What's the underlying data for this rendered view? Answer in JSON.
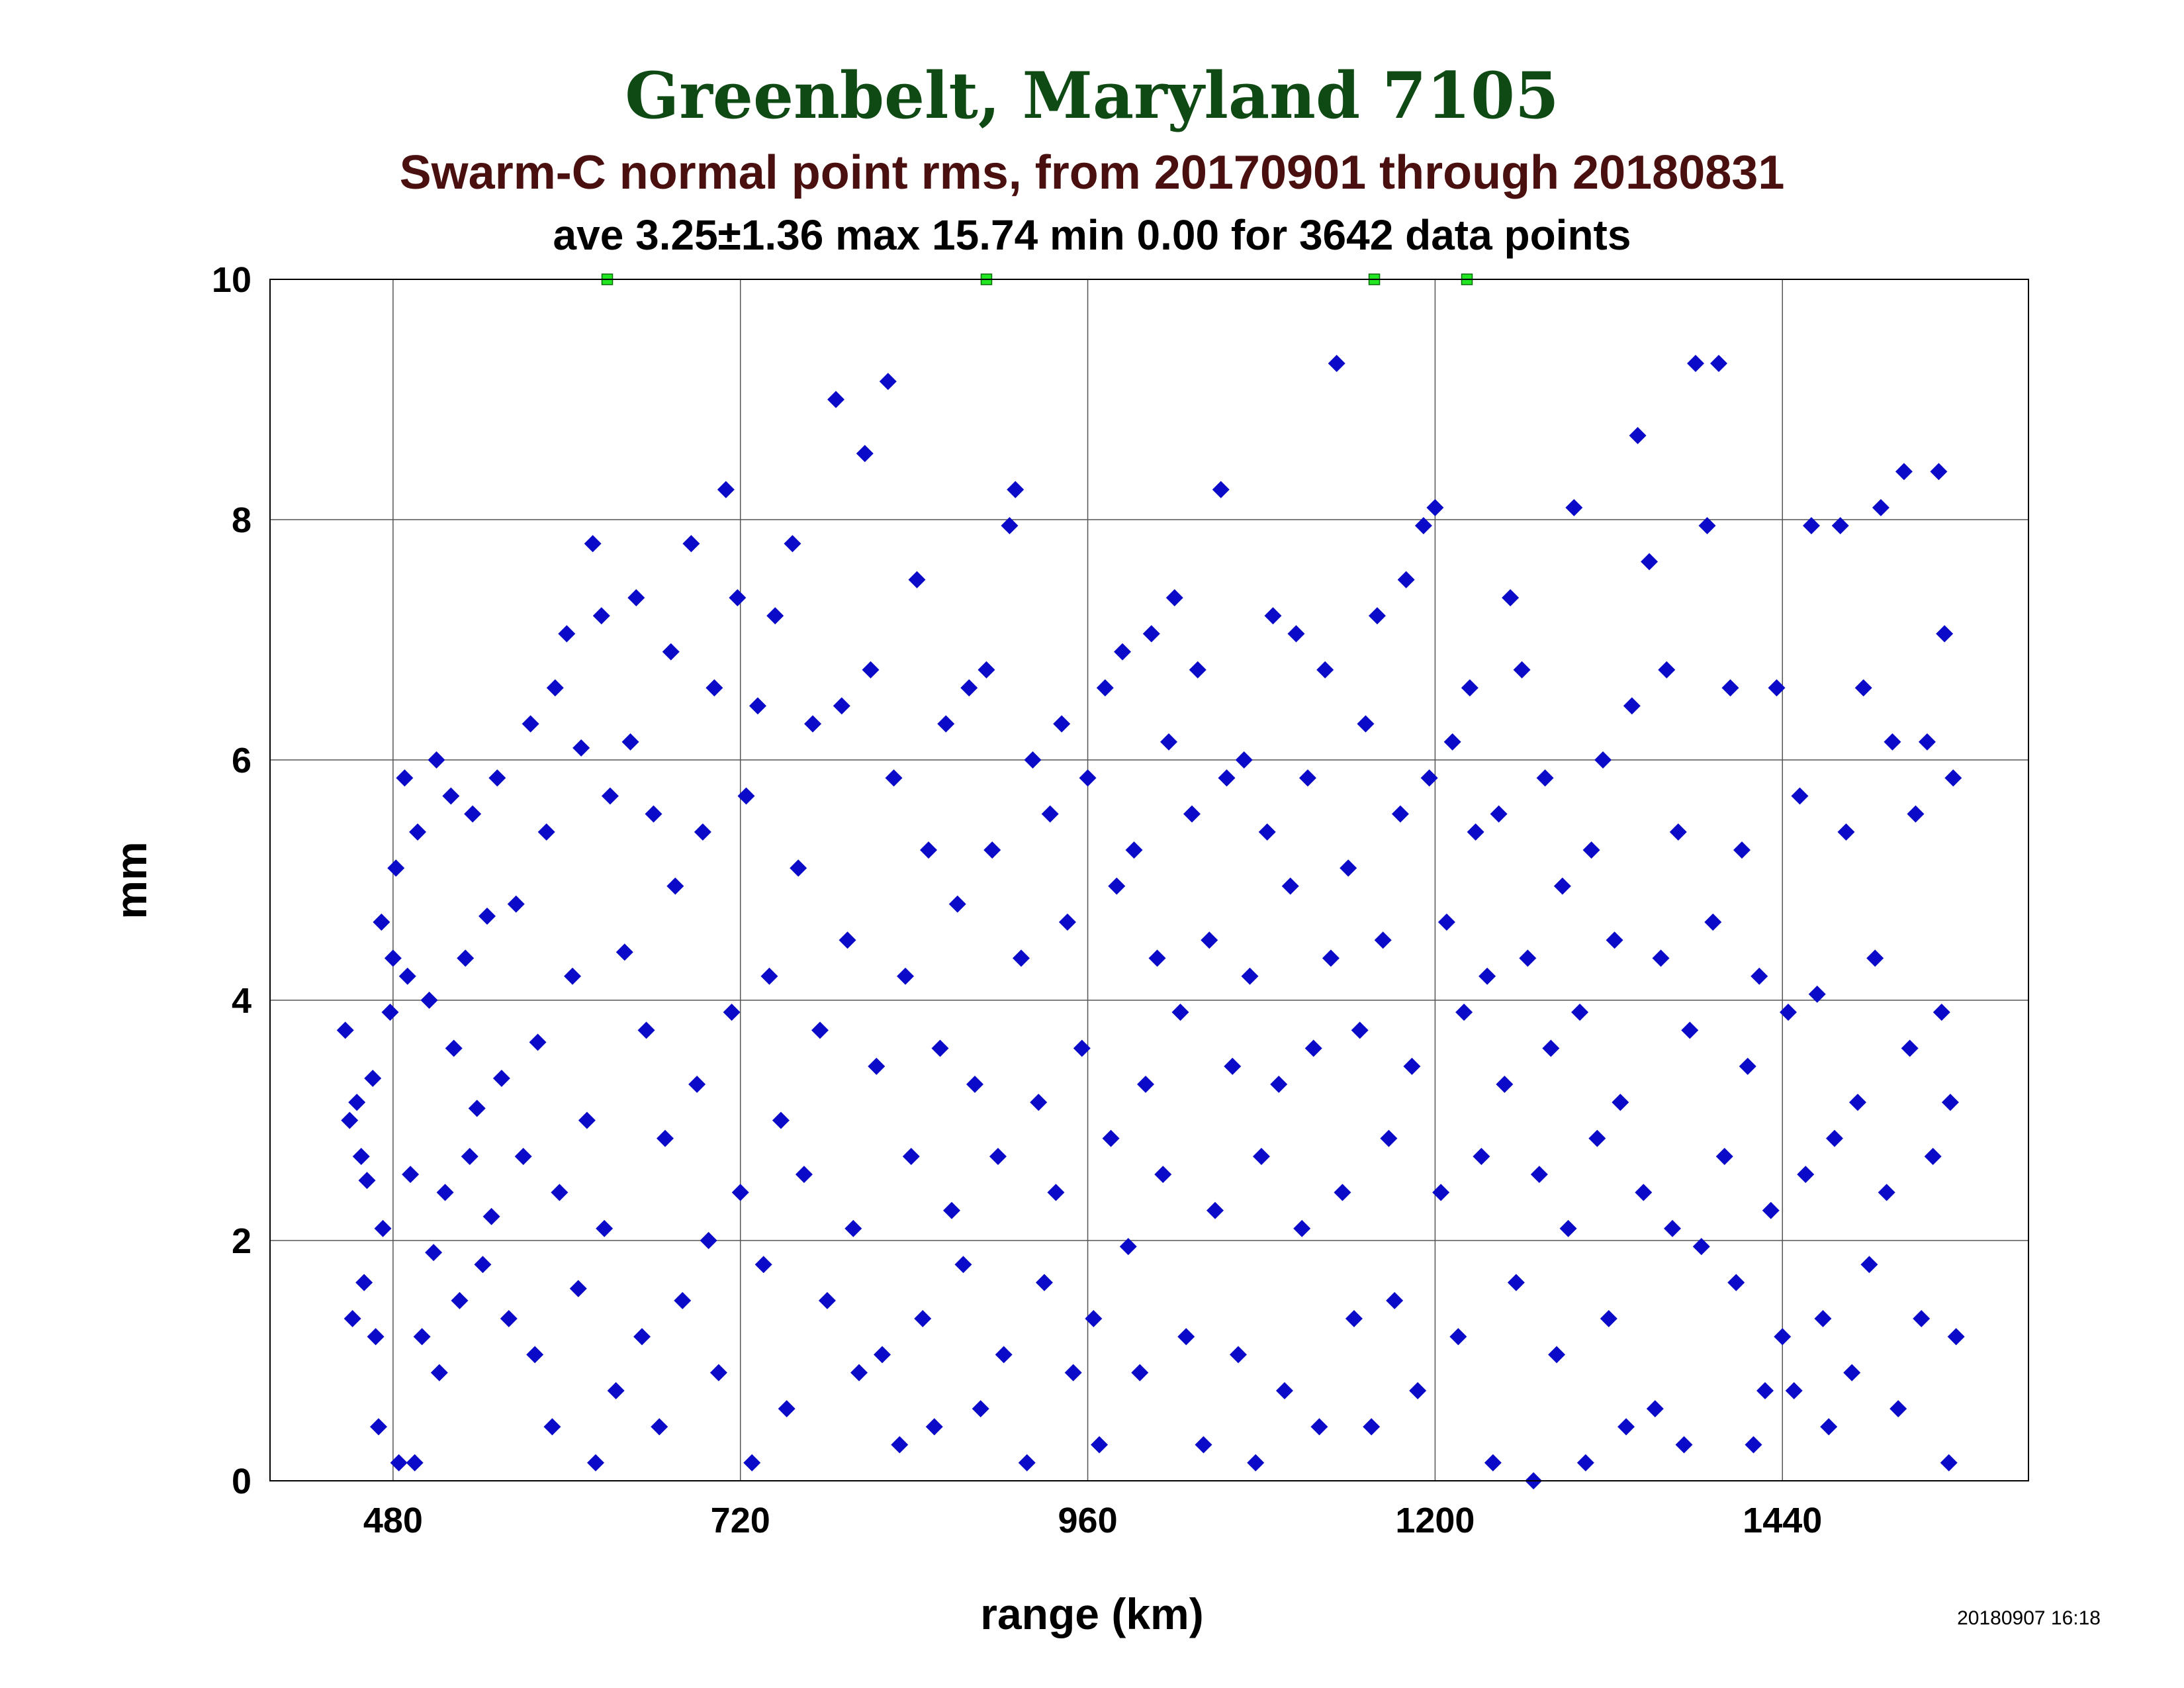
{
  "title": "Greenbelt, Maryland 7105",
  "subtitle": "Swarm-C normal point rms, from 20170901 through 20180831",
  "stats_line": "ave 3.25±1.36 max 15.74 min 0.00 for 3642 data points",
  "timestamp": "20180907 16:18",
  "colors": {
    "title": "#0f4a14",
    "subtitle": "#4a1010",
    "points": "#0a0ac8",
    "outlier_markers": "#22e622",
    "grid": "#555555"
  },
  "chart_data": {
    "type": "scatter",
    "xlabel": "range (km)",
    "ylabel": "mm",
    "xlim": [
      395,
      1610
    ],
    "ylim": [
      0,
      10
    ],
    "x_ticks": [
      480,
      720,
      960,
      1200,
      1440
    ],
    "y_ticks": [
      0,
      2,
      4,
      6,
      8,
      10
    ],
    "grid": true,
    "outliers_above_ylim_at_x": [
      628,
      890,
      1158,
      1222
    ],
    "series": [
      {
        "marker": "diamond",
        "points": [
          [
            447,
            3.75
          ],
          [
            450,
            3.0
          ],
          [
            452,
            1.35
          ],
          [
            455,
            3.15
          ],
          [
            458,
            2.7
          ],
          [
            460,
            1.65
          ],
          [
            462,
            2.5
          ],
          [
            466,
            3.35
          ],
          [
            468,
            1.2
          ],
          [
            470,
            0.45
          ],
          [
            472,
            4.65
          ],
          [
            473,
            2.1
          ],
          [
            478,
            3.9
          ],
          [
            480,
            4.35
          ],
          [
            482,
            5.1
          ],
          [
            484,
            0.15
          ],
          [
            488,
            5.85
          ],
          [
            490,
            4.2
          ],
          [
            492,
            2.55
          ],
          [
            495,
            0.15
          ],
          [
            497,
            5.4
          ],
          [
            500,
            1.2
          ],
          [
            505,
            4.0
          ],
          [
            508,
            1.9
          ],
          [
            510,
            6.0
          ],
          [
            512,
            0.9
          ],
          [
            516,
            2.4
          ],
          [
            520,
            5.7
          ],
          [
            522,
            3.6
          ],
          [
            526,
            1.5
          ],
          [
            530,
            4.35
          ],
          [
            533,
            2.7
          ],
          [
            535,
            5.55
          ],
          [
            538,
            3.1
          ],
          [
            542,
            1.8
          ],
          [
            545,
            4.7
          ],
          [
            548,
            2.2
          ],
          [
            552,
            5.85
          ],
          [
            555,
            3.35
          ],
          [
            560,
            1.35
          ],
          [
            565,
            4.8
          ],
          [
            570,
            2.7
          ],
          [
            575,
            6.3
          ],
          [
            578,
            1.05
          ],
          [
            580,
            3.65
          ],
          [
            586,
            5.4
          ],
          [
            590,
            0.45
          ],
          [
            592,
            6.6
          ],
          [
            595,
            2.4
          ],
          [
            600,
            7.05
          ],
          [
            604,
            4.2
          ],
          [
            608,
            1.6
          ],
          [
            610,
            6.1
          ],
          [
            614,
            3.0
          ],
          [
            618,
            7.8
          ],
          [
            620,
            0.15
          ],
          [
            624,
            7.2
          ],
          [
            626,
            2.1
          ],
          [
            630,
            5.7
          ],
          [
            634,
            0.75
          ],
          [
            640,
            4.4
          ],
          [
            644,
            6.15
          ],
          [
            648,
            7.35
          ],
          [
            652,
            1.2
          ],
          [
            655,
            3.75
          ],
          [
            660,
            5.55
          ],
          [
            664,
            0.45
          ],
          [
            668,
            2.85
          ],
          [
            672,
            6.9
          ],
          [
            675,
            4.95
          ],
          [
            680,
            1.5
          ],
          [
            686,
            7.8
          ],
          [
            690,
            3.3
          ],
          [
            694,
            5.4
          ],
          [
            698,
            2.0
          ],
          [
            702,
            6.6
          ],
          [
            705,
            0.9
          ],
          [
            710,
            8.25
          ],
          [
            714,
            3.9
          ],
          [
            718,
            7.35
          ],
          [
            720,
            2.4
          ],
          [
            724,
            5.7
          ],
          [
            728,
            0.15
          ],
          [
            732,
            6.45
          ],
          [
            736,
            1.8
          ],
          [
            740,
            4.2
          ],
          [
            744,
            7.2
          ],
          [
            748,
            3.0
          ],
          [
            752,
            0.6
          ],
          [
            756,
            7.8
          ],
          [
            760,
            5.1
          ],
          [
            764,
            2.55
          ],
          [
            770,
            6.3
          ],
          [
            775,
            3.75
          ],
          [
            780,
            1.5
          ],
          [
            786,
            9.0
          ],
          [
            790,
            6.45
          ],
          [
            794,
            4.5
          ],
          [
            798,
            2.1
          ],
          [
            802,
            0.9
          ],
          [
            806,
            8.55
          ],
          [
            810,
            6.75
          ],
          [
            814,
            3.45
          ],
          [
            818,
            1.05
          ],
          [
            822,
            9.15
          ],
          [
            826,
            5.85
          ],
          [
            830,
            0.3
          ],
          [
            834,
            4.2
          ],
          [
            838,
            2.7
          ],
          [
            842,
            7.5
          ],
          [
            846,
            1.35
          ],
          [
            850,
            5.25
          ],
          [
            854,
            0.45
          ],
          [
            858,
            3.6
          ],
          [
            862,
            6.3
          ],
          [
            866,
            2.25
          ],
          [
            870,
            4.8
          ],
          [
            874,
            1.8
          ],
          [
            878,
            6.6
          ],
          [
            882,
            3.3
          ],
          [
            886,
            0.6
          ],
          [
            890,
            6.75
          ],
          [
            894,
            5.25
          ],
          [
            898,
            2.7
          ],
          [
            902,
            1.05
          ],
          [
            906,
            7.95
          ],
          [
            910,
            8.25
          ],
          [
            914,
            4.35
          ],
          [
            918,
            0.15
          ],
          [
            922,
            6.0
          ],
          [
            926,
            3.15
          ],
          [
            930,
            1.65
          ],
          [
            934,
            5.55
          ],
          [
            938,
            2.4
          ],
          [
            942,
            6.3
          ],
          [
            946,
            4.65
          ],
          [
            950,
            0.9
          ],
          [
            956,
            3.6
          ],
          [
            960,
            5.85
          ],
          [
            964,
            1.35
          ],
          [
            968,
            0.3
          ],
          [
            972,
            6.6
          ],
          [
            976,
            2.85
          ],
          [
            980,
            4.95
          ],
          [
            984,
            6.9
          ],
          [
            988,
            1.95
          ],
          [
            992,
            5.25
          ],
          [
            996,
            0.9
          ],
          [
            1000,
            3.3
          ],
          [
            1004,
            7.05
          ],
          [
            1008,
            4.35
          ],
          [
            1012,
            2.55
          ],
          [
            1016,
            6.15
          ],
          [
            1020,
            7.35
          ],
          [
            1024,
            3.9
          ],
          [
            1028,
            1.2
          ],
          [
            1032,
            5.55
          ],
          [
            1036,
            6.75
          ],
          [
            1040,
            0.3
          ],
          [
            1044,
            4.5
          ],
          [
            1048,
            2.25
          ],
          [
            1052,
            8.25
          ],
          [
            1056,
            5.85
          ],
          [
            1060,
            3.45
          ],
          [
            1064,
            1.05
          ],
          [
            1068,
            6.0
          ],
          [
            1072,
            4.2
          ],
          [
            1076,
            0.15
          ],
          [
            1080,
            2.7
          ],
          [
            1084,
            5.4
          ],
          [
            1088,
            7.2
          ],
          [
            1092,
            3.3
          ],
          [
            1096,
            0.75
          ],
          [
            1100,
            4.95
          ],
          [
            1104,
            7.05
          ],
          [
            1108,
            2.1
          ],
          [
            1112,
            5.85
          ],
          [
            1116,
            3.6
          ],
          [
            1120,
            0.45
          ],
          [
            1124,
            6.75
          ],
          [
            1128,
            4.35
          ],
          [
            1132,
            9.3
          ],
          [
            1136,
            2.4
          ],
          [
            1140,
            5.1
          ],
          [
            1144,
            1.35
          ],
          [
            1148,
            3.75
          ],
          [
            1152,
            6.3
          ],
          [
            1156,
            0.45
          ],
          [
            1160,
            7.2
          ],
          [
            1164,
            4.5
          ],
          [
            1168,
            2.85
          ],
          [
            1172,
            1.5
          ],
          [
            1176,
            5.55
          ],
          [
            1180,
            7.5
          ],
          [
            1184,
            3.45
          ],
          [
            1188,
            0.75
          ],
          [
            1192,
            7.95
          ],
          [
            1196,
            5.85
          ],
          [
            1200,
            8.1
          ],
          [
            1204,
            2.4
          ],
          [
            1208,
            4.65
          ],
          [
            1212,
            6.15
          ],
          [
            1216,
            1.2
          ],
          [
            1220,
            3.9
          ],
          [
            1224,
            6.6
          ],
          [
            1228,
            5.4
          ],
          [
            1232,
            2.7
          ],
          [
            1236,
            4.2
          ],
          [
            1240,
            0.15
          ],
          [
            1244,
            5.55
          ],
          [
            1248,
            3.3
          ],
          [
            1252,
            7.35
          ],
          [
            1256,
            1.65
          ],
          [
            1260,
            6.75
          ],
          [
            1264,
            4.35
          ],
          [
            1268,
            0.0
          ],
          [
            1272,
            2.55
          ],
          [
            1276,
            5.85
          ],
          [
            1280,
            3.6
          ],
          [
            1284,
            1.05
          ],
          [
            1288,
            4.95
          ],
          [
            1292,
            2.1
          ],
          [
            1296,
            8.1
          ],
          [
            1300,
            3.9
          ],
          [
            1304,
            0.15
          ],
          [
            1308,
            5.25
          ],
          [
            1312,
            2.85
          ],
          [
            1316,
            6.0
          ],
          [
            1320,
            1.35
          ],
          [
            1324,
            4.5
          ],
          [
            1328,
            3.15
          ],
          [
            1332,
            0.45
          ],
          [
            1336,
            6.45
          ],
          [
            1340,
            8.7
          ],
          [
            1344,
            2.4
          ],
          [
            1348,
            7.65
          ],
          [
            1352,
            0.6
          ],
          [
            1356,
            4.35
          ],
          [
            1360,
            6.75
          ],
          [
            1364,
            2.1
          ],
          [
            1368,
            5.4
          ],
          [
            1372,
            0.3
          ],
          [
            1376,
            3.75
          ],
          [
            1380,
            9.3
          ],
          [
            1384,
            1.95
          ],
          [
            1388,
            7.95
          ],
          [
            1392,
            4.65
          ],
          [
            1396,
            9.3
          ],
          [
            1400,
            2.7
          ],
          [
            1404,
            6.6
          ],
          [
            1408,
            1.65
          ],
          [
            1412,
            5.25
          ],
          [
            1416,
            3.45
          ],
          [
            1420,
            0.3
          ],
          [
            1424,
            4.2
          ],
          [
            1428,
            0.75
          ],
          [
            1432,
            2.25
          ],
          [
            1436,
            6.6
          ],
          [
            1440,
            1.2
          ],
          [
            1444,
            3.9
          ],
          [
            1448,
            0.75
          ],
          [
            1452,
            5.7
          ],
          [
            1456,
            2.55
          ],
          [
            1460,
            7.95
          ],
          [
            1464,
            4.05
          ],
          [
            1468,
            1.35
          ],
          [
            1472,
            0.45
          ],
          [
            1476,
            2.85
          ],
          [
            1480,
            7.95
          ],
          [
            1484,
            5.4
          ],
          [
            1488,
            0.9
          ],
          [
            1492,
            3.15
          ],
          [
            1496,
            6.6
          ],
          [
            1500,
            1.8
          ],
          [
            1504,
            4.35
          ],
          [
            1508,
            8.1
          ],
          [
            1512,
            2.4
          ],
          [
            1516,
            6.15
          ],
          [
            1520,
            0.6
          ],
          [
            1524,
            8.4
          ],
          [
            1528,
            3.6
          ],
          [
            1532,
            5.55
          ],
          [
            1536,
            1.35
          ],
          [
            1540,
            6.15
          ],
          [
            1544,
            2.7
          ],
          [
            1548,
            8.4
          ],
          [
            1552,
            7.05
          ],
          [
            1556,
            3.15
          ],
          [
            1560,
            1.2
          ],
          [
            1558,
            5.85
          ],
          [
            1555,
            0.15
          ],
          [
            1550,
            3.9
          ]
        ]
      }
    ]
  }
}
